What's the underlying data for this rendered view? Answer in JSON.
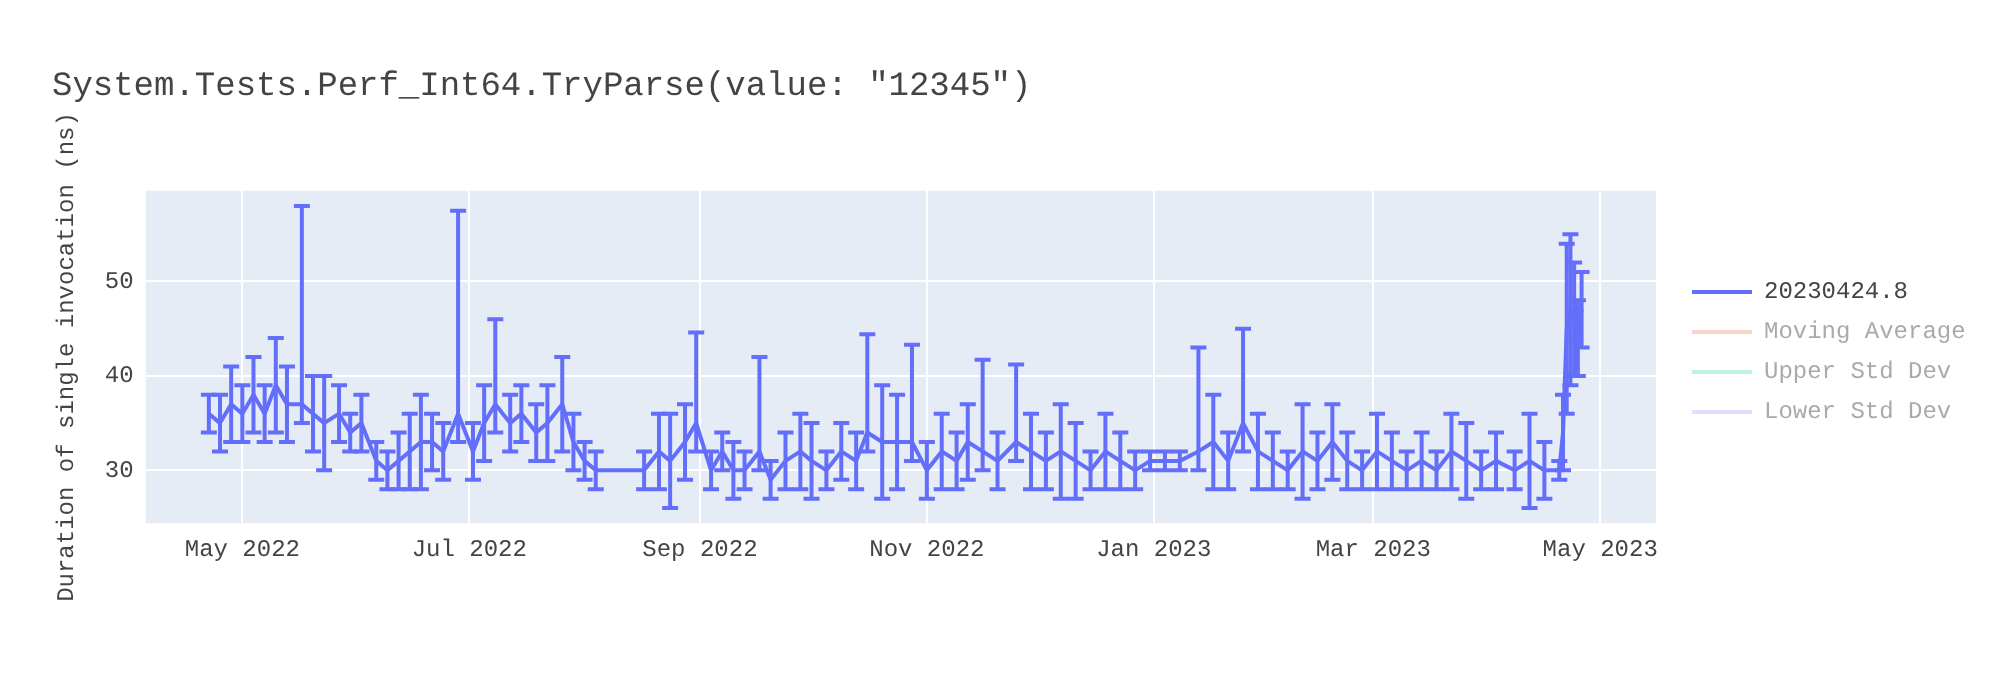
{
  "chart_data": {
    "type": "line",
    "title": "System.Tests.Perf_Int64.TryParse(value: \"12345\")",
    "ylabel": "Duration of single invocation (ns)",
    "xlim": [
      "2022-04-05",
      "2023-05-16"
    ],
    "ylim": [
      24.4,
      59.6
    ],
    "yticks": [
      30,
      40,
      50
    ],
    "xticks": [
      {
        "value": "2022-05-01",
        "label": "May 2022"
      },
      {
        "value": "2022-07-01",
        "label": "Jul 2022"
      },
      {
        "value": "2022-09-01",
        "label": "Sep 2022"
      },
      {
        "value": "2022-11-01",
        "label": "Nov 2022"
      },
      {
        "value": "2023-01-01",
        "label": "Jan 2023"
      },
      {
        "value": "2023-03-01",
        "label": "Mar 2023"
      },
      {
        "value": "2023-05-01",
        "label": "May 2023"
      }
    ],
    "grid": true,
    "legend": "top right",
    "series": [
      {
        "name": "20230424.8",
        "color": "#636efa",
        "x": [
          "2022-04-22",
          "2022-04-25",
          "2022-04-28",
          "2022-05-01",
          "2022-05-04",
          "2022-05-07",
          "2022-05-10",
          "2022-05-13",
          "2022-05-17",
          "2022-05-20",
          "2022-05-23",
          "2022-05-27",
          "2022-05-30",
          "2022-06-02",
          "2022-06-06",
          "2022-06-09",
          "2022-06-12",
          "2022-06-15",
          "2022-06-18",
          "2022-06-21",
          "2022-06-24",
          "2022-06-28",
          "2022-07-02",
          "2022-07-05",
          "2022-07-08",
          "2022-07-12",
          "2022-07-15",
          "2022-07-19",
          "2022-07-22",
          "2022-07-26",
          "2022-07-29",
          "2022-08-01",
          "2022-08-04",
          "2022-08-17",
          "2022-08-21",
          "2022-08-24",
          "2022-08-28",
          "2022-08-31",
          "2022-09-04",
          "2022-09-07",
          "2022-09-10",
          "2022-09-13",
          "2022-09-17",
          "2022-09-20",
          "2022-09-24",
          "2022-09-28",
          "2022-10-01",
          "2022-10-05",
          "2022-10-09",
          "2022-10-13",
          "2022-10-16",
          "2022-10-20",
          "2022-10-24",
          "2022-10-28",
          "2022-11-01",
          "2022-11-05",
          "2022-11-09",
          "2022-11-12",
          "2022-11-16",
          "2022-11-20",
          "2022-11-25",
          "2022-11-29",
          "2022-12-03",
          "2022-12-07",
          "2022-12-11",
          "2022-12-15",
          "2022-12-19",
          "2022-12-23",
          "2022-12-27",
          "2022-12-31",
          "2023-01-04",
          "2023-01-08",
          "2023-01-13",
          "2023-01-17",
          "2023-01-21",
          "2023-01-25",
          "2023-01-29",
          "2023-02-02",
          "2023-02-06",
          "2023-02-10",
          "2023-02-14",
          "2023-02-18",
          "2023-02-22",
          "2023-02-26",
          "2023-03-02",
          "2023-03-06",
          "2023-03-10",
          "2023-03-14",
          "2023-03-18",
          "2023-03-22",
          "2023-03-26",
          "2023-03-30",
          "2023-04-03",
          "2023-04-08",
          "2023-04-12",
          "2023-04-16",
          "2023-04-20",
          "2023-04-21",
          "2023-04-22",
          "2023-04-23",
          "2023-04-24",
          "2023-04-25",
          "2023-04-26"
        ],
        "values": [
          36,
          35,
          37,
          36,
          38,
          36,
          39,
          37,
          37,
          36,
          35,
          36,
          34,
          35,
          31,
          30,
          31,
          32,
          33,
          33,
          32,
          36,
          32,
          35,
          37,
          35,
          36,
          34,
          35,
          37,
          33,
          31,
          30,
          30,
          32,
          31,
          33,
          35,
          30,
          32,
          30,
          30,
          32,
          29,
          31,
          32,
          31,
          30,
          32,
          31,
          34,
          33,
          33,
          33,
          30,
          32,
          31,
          33,
          32,
          31,
          33,
          32,
          31,
          32,
          31,
          30,
          32,
          31,
          30,
          31,
          31,
          31,
          32,
          33,
          31,
          35,
          32,
          31,
          30,
          32,
          31,
          33,
          31,
          30,
          32,
          31,
          30,
          31,
          30,
          32,
          31,
          30,
          31,
          30,
          31,
          30,
          30,
          34,
          45,
          47,
          46,
          44,
          47
        ],
        "errors": [
          2,
          3,
          4,
          3,
          4,
          3,
          5,
          4,
          [
            35,
            58
          ],
          4,
          5,
          3,
          2,
          3,
          2,
          2,
          3,
          4,
          5,
          3,
          3,
          [
            33,
            57.5
          ],
          3,
          4,
          [
            34,
            46
          ],
          3,
          3,
          3,
          4,
          5,
          3,
          2,
          2,
          2,
          4,
          5,
          4,
          [
            32,
            44.6
          ],
          2,
          2,
          3,
          2,
          [
            30,
            42
          ],
          2,
          3,
          4,
          4,
          2,
          3,
          3,
          [
            32,
            44.4
          ],
          6,
          5,
          [
            31,
            43.3
          ],
          3,
          4,
          3,
          4,
          [
            30,
            41.7
          ],
          3,
          [
            31,
            41.2
          ],
          4,
          3,
          5,
          4,
          2,
          4,
          3,
          2,
          1,
          1,
          1,
          [
            30,
            43
          ],
          5,
          3,
          [
            32,
            45
          ],
          4,
          3,
          2,
          5,
          3,
          4,
          3,
          2,
          4,
          3,
          2,
          3,
          2,
          4,
          4,
          2,
          3,
          2,
          5,
          3,
          1,
          4,
          9,
          8,
          6,
          4,
          4
        ]
      },
      {
        "name": "Moving Average",
        "color": "#f4a792"
      },
      {
        "name": "Upper Std Dev",
        "color": "#7ee5c4"
      },
      {
        "name": "Lower Std Dev",
        "color": "#cdb6fb"
      }
    ]
  }
}
